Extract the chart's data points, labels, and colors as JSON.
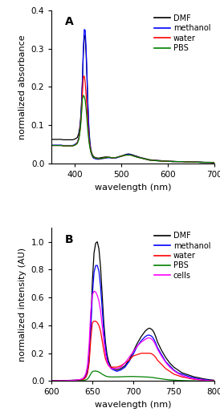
{
  "panel_A": {
    "title": "A",
    "xlabel": "wavelength (nm)",
    "ylabel": "normalized absorbance",
    "xlim": [
      350,
      700
    ],
    "ylim": [
      0,
      0.4
    ],
    "yticks": [
      0.0,
      0.1,
      0.2,
      0.3,
      0.4
    ],
    "xticks": [
      400,
      500,
      600,
      700
    ],
    "legend": [
      "DMF",
      "methanol",
      "water",
      "PBS"
    ],
    "colors": [
      "black",
      "blue",
      "red",
      "green"
    ],
    "DMF": {
      "x": [
        350,
        355,
        360,
        365,
        370,
        375,
        380,
        385,
        390,
        395,
        400,
        405,
        408,
        410,
        412,
        414,
        416,
        418,
        420,
        422,
        424,
        426,
        428,
        430,
        432,
        434,
        436,
        438,
        440,
        445,
        450,
        455,
        460,
        465,
        470,
        475,
        480,
        485,
        490,
        495,
        500,
        505,
        510,
        515,
        520,
        525,
        530,
        535,
        540,
        550,
        560,
        570,
        580,
        590,
        600,
        610,
        620,
        630,
        640,
        650,
        660,
        670,
        680,
        690,
        700
      ],
      "y": [
        0.063,
        0.063,
        0.063,
        0.063,
        0.063,
        0.062,
        0.062,
        0.062,
        0.062,
        0.062,
        0.064,
        0.068,
        0.078,
        0.092,
        0.115,
        0.155,
        0.215,
        0.29,
        0.335,
        0.33,
        0.285,
        0.22,
        0.145,
        0.09,
        0.058,
        0.038,
        0.028,
        0.022,
        0.018,
        0.015,
        0.014,
        0.015,
        0.016,
        0.017,
        0.017,
        0.016,
        0.015,
        0.015,
        0.016,
        0.018,
        0.02,
        0.022,
        0.024,
        0.025,
        0.024,
        0.022,
        0.02,
        0.018,
        0.016,
        0.013,
        0.01,
        0.009,
        0.008,
        0.007,
        0.006,
        0.006,
        0.005,
        0.005,
        0.005,
        0.004,
        0.004,
        0.004,
        0.003,
        0.003,
        0.003
      ]
    },
    "methanol": {
      "x": [
        350,
        355,
        360,
        365,
        370,
        375,
        380,
        385,
        390,
        395,
        400,
        405,
        408,
        410,
        412,
        414,
        416,
        418,
        420,
        422,
        424,
        426,
        428,
        430,
        432,
        434,
        436,
        438,
        440,
        445,
        450,
        455,
        460,
        465,
        470,
        475,
        480,
        485,
        490,
        495,
        500,
        505,
        510,
        515,
        520,
        525,
        530,
        535,
        540,
        550,
        560,
        570,
        580,
        590,
        600,
        610,
        620,
        630,
        640,
        650,
        660,
        670,
        680,
        690,
        700
      ],
      "y": [
        0.048,
        0.048,
        0.048,
        0.048,
        0.048,
        0.047,
        0.047,
        0.047,
        0.047,
        0.047,
        0.05,
        0.055,
        0.066,
        0.082,
        0.108,
        0.15,
        0.215,
        0.296,
        0.35,
        0.348,
        0.3,
        0.225,
        0.148,
        0.088,
        0.053,
        0.033,
        0.023,
        0.017,
        0.014,
        0.012,
        0.011,
        0.012,
        0.013,
        0.014,
        0.015,
        0.015,
        0.014,
        0.014,
        0.015,
        0.017,
        0.019,
        0.021,
        0.023,
        0.024,
        0.023,
        0.021,
        0.019,
        0.017,
        0.015,
        0.012,
        0.009,
        0.008,
        0.007,
        0.006,
        0.006,
        0.005,
        0.005,
        0.005,
        0.004,
        0.004,
        0.004,
        0.003,
        0.003,
        0.003,
        0.002
      ]
    },
    "water": {
      "x": [
        350,
        355,
        360,
        365,
        370,
        375,
        380,
        385,
        390,
        395,
        400,
        405,
        408,
        410,
        412,
        414,
        416,
        418,
        420,
        422,
        424,
        426,
        428,
        430,
        432,
        434,
        436,
        438,
        440,
        445,
        450,
        455,
        460,
        465,
        470,
        475,
        480,
        485,
        490,
        495,
        500,
        505,
        510,
        515,
        520,
        525,
        530,
        535,
        540,
        550,
        560,
        570,
        580,
        590,
        600,
        610,
        620,
        630,
        640,
        650,
        660,
        670,
        680,
        690,
        700
      ],
      "y": [
        0.047,
        0.047,
        0.047,
        0.047,
        0.047,
        0.046,
        0.046,
        0.046,
        0.046,
        0.046,
        0.048,
        0.054,
        0.064,
        0.078,
        0.1,
        0.135,
        0.182,
        0.228,
        0.228,
        0.212,
        0.178,
        0.138,
        0.098,
        0.066,
        0.045,
        0.032,
        0.024,
        0.019,
        0.016,
        0.014,
        0.013,
        0.013,
        0.014,
        0.015,
        0.016,
        0.016,
        0.015,
        0.015,
        0.016,
        0.018,
        0.019,
        0.021,
        0.022,
        0.022,
        0.022,
        0.02,
        0.018,
        0.016,
        0.015,
        0.012,
        0.009,
        0.008,
        0.007,
        0.006,
        0.006,
        0.005,
        0.005,
        0.005,
        0.004,
        0.004,
        0.004,
        0.003,
        0.003,
        0.003,
        0.002
      ]
    },
    "PBS": {
      "x": [
        350,
        355,
        360,
        365,
        370,
        375,
        380,
        385,
        390,
        395,
        400,
        405,
        408,
        410,
        412,
        414,
        416,
        418,
        420,
        422,
        424,
        426,
        428,
        430,
        432,
        434,
        436,
        438,
        440,
        445,
        450,
        455,
        460,
        465,
        470,
        475,
        480,
        485,
        490,
        495,
        500,
        505,
        510,
        515,
        520,
        525,
        530,
        535,
        540,
        550,
        560,
        570,
        580,
        590,
        600,
        610,
        620,
        630,
        640,
        650,
        660,
        670,
        680,
        690,
        700
      ],
      "y": [
        0.047,
        0.047,
        0.047,
        0.047,
        0.047,
        0.046,
        0.046,
        0.046,
        0.046,
        0.046,
        0.048,
        0.052,
        0.062,
        0.075,
        0.096,
        0.128,
        0.168,
        0.178,
        0.175,
        0.165,
        0.142,
        0.112,
        0.082,
        0.058,
        0.042,
        0.031,
        0.024,
        0.019,
        0.016,
        0.014,
        0.013,
        0.013,
        0.014,
        0.015,
        0.016,
        0.016,
        0.015,
        0.015,
        0.016,
        0.018,
        0.019,
        0.021,
        0.022,
        0.022,
        0.022,
        0.02,
        0.018,
        0.016,
        0.015,
        0.012,
        0.009,
        0.008,
        0.007,
        0.006,
        0.006,
        0.005,
        0.005,
        0.005,
        0.004,
        0.004,
        0.004,
        0.003,
        0.003,
        0.003,
        0.002
      ]
    }
  },
  "panel_B": {
    "title": "B",
    "xlabel": "wavelength (nm)",
    "ylabel": "normalized intensity (AU)",
    "xlim": [
      600,
      800
    ],
    "ylim": [
      0,
      1.1
    ],
    "yticks": [
      0.0,
      0.2,
      0.4,
      0.6,
      0.8,
      1.0
    ],
    "xticks": [
      600,
      650,
      700,
      750,
      800
    ],
    "legend": [
      "DMF",
      "methanol",
      "water",
      "PBS",
      "cells"
    ],
    "colors": [
      "black",
      "blue",
      "red",
      "green",
      "magenta"
    ],
    "DMF": {
      "x": [
        600,
        605,
        610,
        615,
        620,
        625,
        630,
        635,
        638,
        640,
        642,
        644,
        646,
        648,
        650,
        652,
        654,
        656,
        658,
        660,
        662,
        664,
        666,
        668,
        670,
        673,
        676,
        680,
        685,
        690,
        695,
        700,
        705,
        710,
        715,
        718,
        720,
        722,
        724,
        726,
        728,
        730,
        735,
        740,
        745,
        750,
        755,
        760,
        765,
        770,
        775,
        780,
        785,
        790,
        795,
        800
      ],
      "y": [
        0.004,
        0.004,
        0.004,
        0.005,
        0.005,
        0.006,
        0.007,
        0.01,
        0.015,
        0.025,
        0.04,
        0.075,
        0.18,
        0.42,
        0.72,
        0.92,
        0.99,
        1.0,
        0.95,
        0.82,
        0.62,
        0.42,
        0.28,
        0.19,
        0.14,
        0.1,
        0.09,
        0.08,
        0.09,
        0.11,
        0.15,
        0.21,
        0.27,
        0.32,
        0.36,
        0.375,
        0.38,
        0.375,
        0.365,
        0.345,
        0.315,
        0.28,
        0.22,
        0.17,
        0.13,
        0.1,
        0.08,
        0.06,
        0.05,
        0.04,
        0.03,
        0.025,
        0.018,
        0.013,
        0.009,
        0.006
      ]
    },
    "methanol": {
      "x": [
        600,
        605,
        610,
        615,
        620,
        625,
        630,
        635,
        638,
        640,
        642,
        644,
        646,
        648,
        650,
        652,
        654,
        656,
        658,
        660,
        662,
        664,
        666,
        668,
        670,
        673,
        676,
        680,
        685,
        690,
        695,
        700,
        705,
        710,
        715,
        718,
        720,
        722,
        724,
        726,
        728,
        730,
        735,
        740,
        745,
        750,
        755,
        760,
        765,
        770,
        775,
        780,
        785,
        790,
        795,
        800
      ],
      "y": [
        0.003,
        0.003,
        0.004,
        0.004,
        0.004,
        0.005,
        0.006,
        0.008,
        0.012,
        0.02,
        0.035,
        0.065,
        0.155,
        0.37,
        0.62,
        0.78,
        0.83,
        0.83,
        0.79,
        0.68,
        0.52,
        0.36,
        0.24,
        0.16,
        0.12,
        0.09,
        0.08,
        0.07,
        0.08,
        0.1,
        0.14,
        0.19,
        0.25,
        0.29,
        0.32,
        0.33,
        0.33,
        0.325,
        0.315,
        0.295,
        0.27,
        0.24,
        0.19,
        0.14,
        0.11,
        0.08,
        0.06,
        0.05,
        0.04,
        0.03,
        0.022,
        0.016,
        0.012,
        0.009,
        0.006,
        0.004
      ]
    },
    "water": {
      "x": [
        600,
        605,
        610,
        615,
        620,
        625,
        630,
        635,
        638,
        640,
        642,
        644,
        646,
        648,
        650,
        652,
        654,
        656,
        658,
        660,
        662,
        664,
        666,
        668,
        670,
        673,
        676,
        680,
        685,
        690,
        695,
        700,
        705,
        710,
        715,
        718,
        720,
        722,
        724,
        726,
        728,
        730,
        735,
        740,
        745,
        750,
        755,
        760,
        765,
        770,
        775,
        780,
        785,
        790,
        795,
        800
      ],
      "y": [
        0.002,
        0.002,
        0.003,
        0.003,
        0.003,
        0.004,
        0.005,
        0.007,
        0.01,
        0.016,
        0.028,
        0.055,
        0.13,
        0.3,
        0.42,
        0.43,
        0.43,
        0.42,
        0.4,
        0.36,
        0.29,
        0.22,
        0.16,
        0.13,
        0.11,
        0.1,
        0.1,
        0.1,
        0.11,
        0.13,
        0.15,
        0.18,
        0.19,
        0.2,
        0.2,
        0.2,
        0.2,
        0.198,
        0.192,
        0.182,
        0.168,
        0.15,
        0.12,
        0.09,
        0.07,
        0.05,
        0.04,
        0.03,
        0.025,
        0.018,
        0.013,
        0.01,
        0.007,
        0.005,
        0.004,
        0.003
      ]
    },
    "PBS": {
      "x": [
        600,
        605,
        610,
        615,
        620,
        625,
        630,
        635,
        638,
        640,
        642,
        644,
        646,
        648,
        650,
        652,
        654,
        656,
        658,
        660,
        662,
        664,
        666,
        668,
        670,
        673,
        676,
        680,
        685,
        690,
        695,
        700,
        705,
        710,
        715,
        718,
        720,
        722,
        724,
        726,
        728,
        730,
        735,
        740,
        745,
        750,
        755,
        760,
        765,
        770,
        775,
        780,
        785,
        790,
        795,
        800
      ],
      "y": [
        0.001,
        0.001,
        0.001,
        0.001,
        0.001,
        0.002,
        0.002,
        0.003,
        0.004,
        0.006,
        0.009,
        0.015,
        0.03,
        0.052,
        0.068,
        0.072,
        0.072,
        0.07,
        0.065,
        0.058,
        0.05,
        0.043,
        0.037,
        0.033,
        0.031,
        0.03,
        0.03,
        0.03,
        0.031,
        0.032,
        0.033,
        0.033,
        0.032,
        0.031,
        0.03,
        0.029,
        0.028,
        0.027,
        0.026,
        0.024,
        0.022,
        0.02,
        0.016,
        0.012,
        0.009,
        0.007,
        0.005,
        0.004,
        0.003,
        0.002,
        0.002,
        0.001,
        0.001,
        0.001,
        0.001,
        0.001
      ]
    },
    "cells": {
      "x": [
        600,
        605,
        610,
        615,
        620,
        625,
        630,
        635,
        638,
        640,
        642,
        644,
        646,
        648,
        650,
        652,
        654,
        656,
        658,
        660,
        662,
        664,
        666,
        668,
        670,
        673,
        676,
        680,
        685,
        690,
        695,
        700,
        705,
        710,
        715,
        718,
        720,
        722,
        724,
        726,
        728,
        730,
        735,
        740,
        745,
        750,
        755,
        760,
        765,
        770,
        775,
        780,
        785,
        790,
        795,
        800
      ],
      "y": [
        0.002,
        0.002,
        0.003,
        0.003,
        0.004,
        0.005,
        0.007,
        0.012,
        0.018,
        0.03,
        0.055,
        0.115,
        0.27,
        0.5,
        0.62,
        0.645,
        0.64,
        0.615,
        0.575,
        0.505,
        0.4,
        0.29,
        0.2,
        0.14,
        0.11,
        0.09,
        0.09,
        0.09,
        0.1,
        0.13,
        0.17,
        0.21,
        0.25,
        0.28,
        0.3,
        0.31,
        0.31,
        0.305,
        0.295,
        0.278,
        0.255,
        0.228,
        0.178,
        0.135,
        0.1,
        0.075,
        0.055,
        0.04,
        0.03,
        0.022,
        0.016,
        0.011,
        0.008,
        0.005,
        0.003,
        0.002
      ]
    }
  }
}
